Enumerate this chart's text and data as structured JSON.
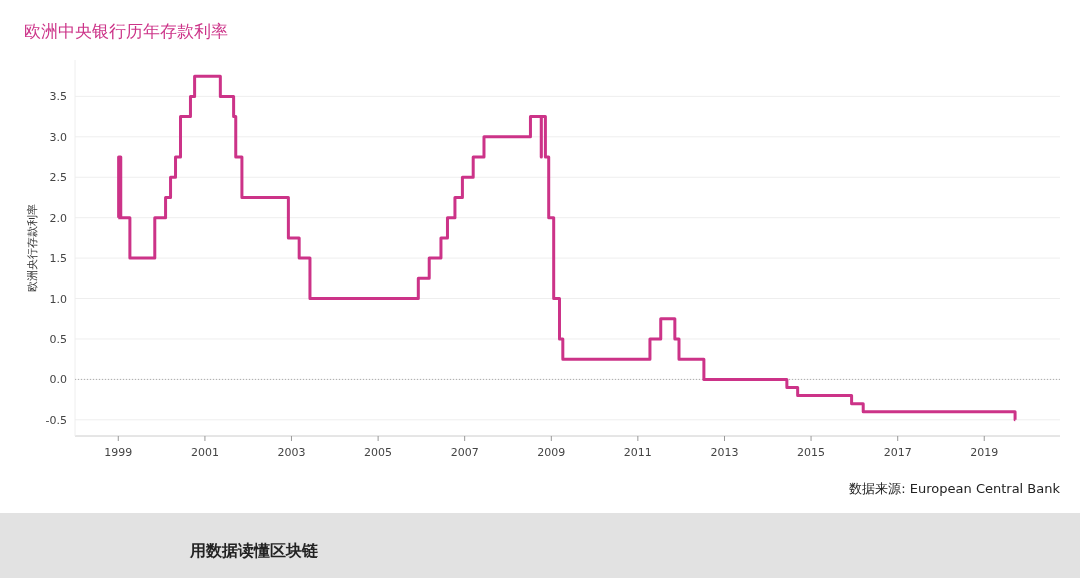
{
  "chart_data": {
    "type": "step",
    "title": "欧洲中央银行历年存款利率",
    "ylabel": "欧洲央行存款利率",
    "x": [
      "1999-01-01",
      "1999-01-04",
      "1999-01-22",
      "1999-04-09",
      "1999-11-05",
      "2000-02-04",
      "2000-03-17",
      "2000-04-28",
      "2000-06-09",
      "2000-09-01",
      "2000-10-06",
      "2001-05-11",
      "2001-08-31",
      "2001-09-18",
      "2001-11-09",
      "2002-12-06",
      "2003-03-07",
      "2003-06-06",
      "2005-12-06",
      "2006-03-08",
      "2006-06-15",
      "2006-08-09",
      "2006-10-11",
      "2006-12-13",
      "2007-03-14",
      "2007-06-13",
      "2008-07-09",
      "2008-10-08",
      "2008-10-09",
      "2008-11-12",
      "2008-12-10",
      "2009-01-21",
      "2009-03-11",
      "2009-04-08",
      "2011-04-13",
      "2011-07-13",
      "2011-11-09",
      "2011-12-14",
      "2012-07-11",
      "2014-06-11",
      "2014-09-10",
      "2015-12-09",
      "2016-03-16",
      "2019-09-18",
      "2019-09-20"
    ],
    "series": [
      {
        "color": "#cc3388",
        "values": [
          2.0,
          2.75,
          2.0,
          1.5,
          2.0,
          2.25,
          2.5,
          2.75,
          3.25,
          3.5,
          3.75,
          3.5,
          3.25,
          2.75,
          2.25,
          1.75,
          1.5,
          1.0,
          1.25,
          1.5,
          1.75,
          2.0,
          2.25,
          2.5,
          2.75,
          3.0,
          3.25,
          2.75,
          3.25,
          2.75,
          2.0,
          1.0,
          0.5,
          0.25,
          0.5,
          0.75,
          0.5,
          0.25,
          0.0,
          -0.1,
          -0.2,
          -0.3,
          -0.4,
          -0.5,
          -0.5
        ]
      }
    ],
    "xlim": [
      "1998-01-01",
      "2020-10-01"
    ],
    "xticks": [
      {
        "value": "1999-01-01",
        "label": "1999"
      },
      {
        "value": "2001-01-01",
        "label": "2001"
      },
      {
        "value": "2003-01-01",
        "label": "2003"
      },
      {
        "value": "2005-01-01",
        "label": "2005"
      },
      {
        "value": "2007-01-01",
        "label": "2007"
      },
      {
        "value": "2009-01-01",
        "label": "2009"
      },
      {
        "value": "2011-01-01",
        "label": "2011"
      },
      {
        "value": "2013-01-01",
        "label": "2013"
      },
      {
        "value": "2015-01-01",
        "label": "2015"
      },
      {
        "value": "2017-01-01",
        "label": "2017"
      },
      {
        "value": "2019-01-01",
        "label": "2019"
      }
    ],
    "ylim": [
      -0.7,
      3.95
    ],
    "yticks": [
      {
        "value": -0.5,
        "label": "-0.5"
      },
      {
        "value": 0,
        "label": "0.0"
      },
      {
        "value": 0.5,
        "label": "0.5"
      },
      {
        "value": 1,
        "label": "1.0"
      },
      {
        "value": 1.5,
        "label": "1.5"
      },
      {
        "value": 2,
        "label": "2.0"
      },
      {
        "value": 2.5,
        "label": "2.5"
      },
      {
        "value": 3,
        "label": "3.0"
      },
      {
        "value": 3.5,
        "label": "3.5"
      }
    ],
    "ref_lines": [
      {
        "axis": "y",
        "value": 0,
        "color": "#aaaaaa",
        "line_style": "dotted"
      }
    ],
    "grid": "y",
    "annotations": [
      "数据来源: European Central Bank",
      "用数据读懂区块链"
    ]
  }
}
